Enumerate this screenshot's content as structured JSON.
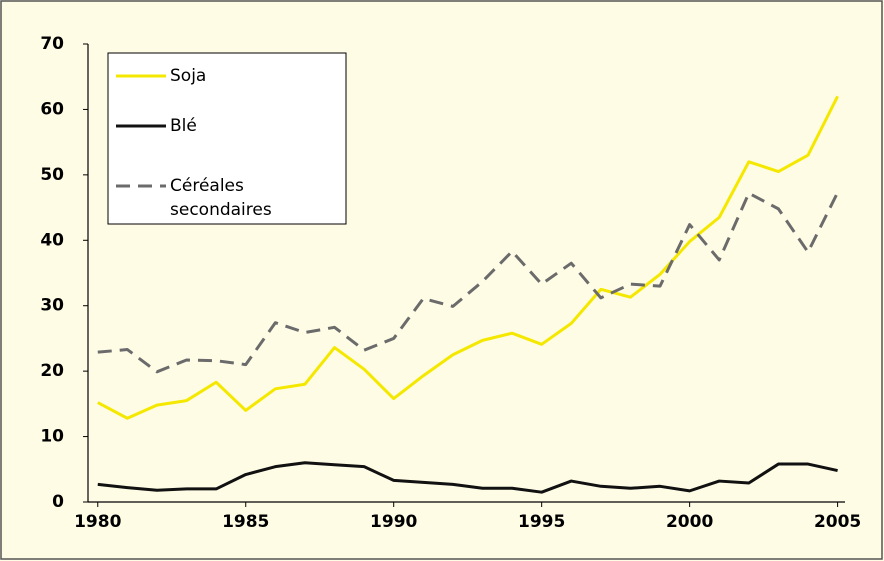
{
  "chart_data": {
    "type": "line",
    "x": [
      1980,
      1981,
      1982,
      1983,
      1984,
      1985,
      1986,
      1987,
      1988,
      1989,
      1990,
      1991,
      1992,
      1993,
      1994,
      1995,
      1996,
      1997,
      1998,
      1999,
      2000,
      2001,
      2002,
      2003,
      2004,
      2005
    ],
    "series": [
      {
        "name": "Soja",
        "color": "#f5e800",
        "dash": false,
        "values": [
          15.2,
          12.8,
          14.8,
          15.5,
          18.3,
          14.0,
          17.3,
          18.0,
          23.6,
          20.3,
          15.8,
          19.3,
          22.5,
          24.7,
          25.8,
          24.1,
          27.3,
          32.5,
          31.3,
          34.8,
          39.8,
          43.5,
          52.0,
          50.5,
          53.0,
          62.0
        ]
      },
      {
        "name": "Blé",
        "color": "#111111",
        "dash": false,
        "values": [
          2.7,
          2.2,
          1.8,
          2.0,
          2.0,
          4.2,
          5.4,
          6.0,
          5.7,
          5.4,
          3.3,
          3.0,
          2.7,
          2.1,
          2.1,
          1.5,
          3.2,
          2.4,
          2.1,
          2.4,
          1.7,
          3.2,
          2.9,
          5.8,
          5.8,
          4.8
        ]
      },
      {
        "name": "Céréales secondaires",
        "color": "#6b6b6b",
        "dash": true,
        "values": [
          22.9,
          23.3,
          19.9,
          21.7,
          21.6,
          21.0,
          27.4,
          25.9,
          26.7,
          23.2,
          25.0,
          31.1,
          29.9,
          33.7,
          38.3,
          33.3,
          36.5,
          31.2,
          33.3,
          33.0,
          42.4,
          37.0,
          47.2,
          44.8,
          38.2,
          47.3
        ]
      }
    ],
    "xlim": [
      1979.67,
      2005.25
    ],
    "xticks": [
      1980,
      1985,
      1990,
      1995,
      2000,
      2005
    ],
    "ylim": [
      0,
      70
    ],
    "yticks": [
      0,
      10,
      20,
      30,
      40,
      50,
      60,
      70
    ]
  }
}
